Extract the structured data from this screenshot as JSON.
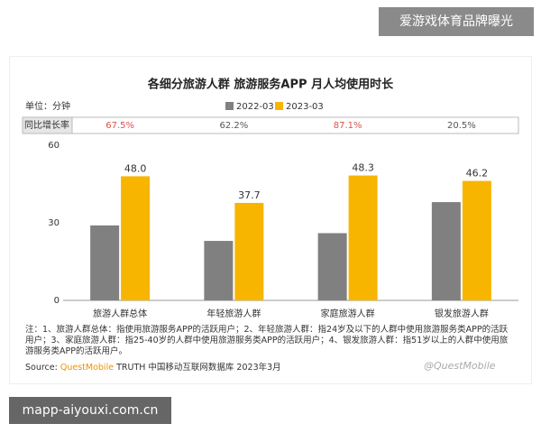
{
  "watermark": "爱游戏体育品牌曝光",
  "site": "mapp-aiyouxi.com.cn",
  "chart_data": {
    "type": "bar",
    "title": "各细分旅游人群 旅游服务APP 月人均使用时长",
    "unit": "单位：分钟",
    "categories": [
      "旅游人群总体",
      "年轻旅游人群",
      "家庭旅游人群",
      "银发旅游人群"
    ],
    "series": [
      {
        "name": "2022-03",
        "color": "#808080",
        "values": [
          29,
          23,
          26,
          38
        ]
      },
      {
        "name": "2023-03",
        "color": "#f7b500",
        "values": [
          48,
          37.7,
          48.3,
          46.2
        ],
        "value_labels": [
          "48.0",
          "37.7",
          "48.3",
          "46.2"
        ]
      }
    ],
    "growth": {
      "label": "同比增长率",
      "values": [
        67.5,
        62.2,
        87.1,
        20.5
      ],
      "value_labels": [
        "67.5%",
        "62.2%",
        "87.1%",
        "20.5%"
      ],
      "colors": [
        "#d9534f",
        "#555555",
        "#d9534f",
        "#555555"
      ]
    },
    "ylim": [
      0,
      60
    ],
    "yticks": [
      0,
      30,
      60
    ],
    "grid": false,
    "note": "注：1、旅游人群总体：指使用旅游服务APP的活跃用户；2、年轻旅游人群：指24岁及以下的人群中使用旅游服务类APP的活跃用户；3、家庭旅游人群：指25-40岁的人群中使用旅游服务类APP的活跃用户；4、银发旅游人群：指51岁以上的人群中使用旅游服务类APP的活跃用户。",
    "source_prefix": "Source:",
    "source_brand": "QuestMobile",
    "source_rest": "TRUTH 中国移动互联网数据库 2023年3月",
    "logo": "@QuestMobile"
  }
}
